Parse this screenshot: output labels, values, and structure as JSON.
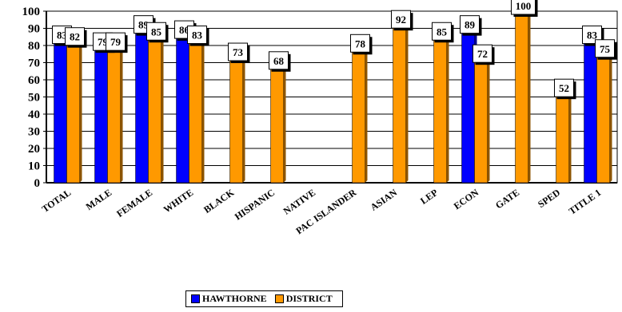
{
  "chart_data": {
    "type": "bar",
    "categories": [
      "TOTAL",
      "MALE",
      "FEMALE",
      "WHITE",
      "BLACK",
      "HISPANIC",
      "NATIVE",
      "PAC ISLANDER",
      "ASIAN",
      "LEP",
      "ECON",
      "GATE",
      "SPED",
      "TITLE 1"
    ],
    "series": [
      {
        "name": "HAWTHORNE",
        "color": "#0000ff",
        "values": [
          83,
          79,
          89,
          86,
          null,
          null,
          null,
          null,
          null,
          null,
          89,
          null,
          null,
          83
        ],
        "labels": [
          "83",
          "79",
          "89",
          "86",
          "",
          "",
          "",
          "",
          "",
          "",
          "89",
          "",
          "",
          "83"
        ]
      },
      {
        "name": "DISTRICT",
        "color": "#ff9900",
        "values": [
          82,
          79,
          85,
          83,
          73,
          68,
          0,
          78,
          92,
          85,
          72,
          100,
          52,
          75
        ],
        "labels": [
          "82",
          "79",
          "85",
          "83",
          "73",
          "68",
          "",
          "78",
          "92",
          "85",
          "72",
          "100",
          "52",
          "75"
        ]
      }
    ],
    "ylim": [
      0,
      100
    ],
    "yticks": [
      "0",
      "10",
      "20",
      "30",
      "40",
      "50",
      "60",
      "70",
      "80",
      "90",
      "100"
    ],
    "grid": true,
    "legend_position": "bottom"
  }
}
